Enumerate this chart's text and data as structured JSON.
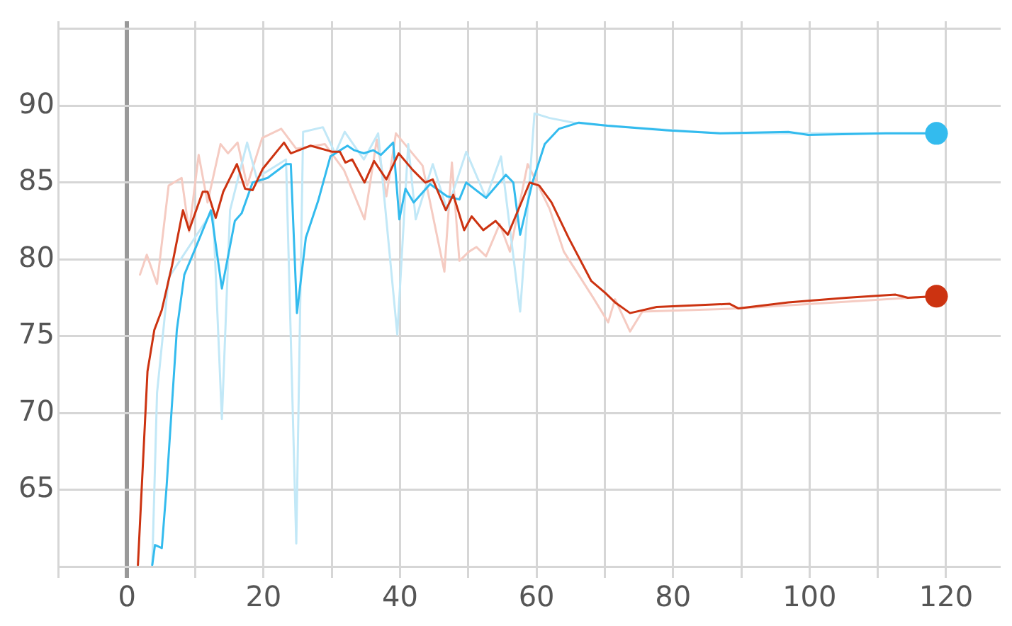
{
  "chart_data": {
    "type": "line",
    "xlim": [
      -10,
      128
    ],
    "ylim": [
      60,
      95.5
    ],
    "xticks": [
      {
        "value": -10,
        "label": null
      },
      0,
      {
        "value": 10,
        "label": null
      },
      20,
      {
        "value": 30,
        "label": null
      },
      40,
      {
        "value": 50,
        "label": null
      },
      60,
      {
        "value": 70,
        "label": null
      },
      80,
      {
        "value": 90,
        "label": null
      },
      100,
      {
        "value": 110,
        "label": null
      },
      120
    ],
    "yticks": [
      {
        "value": 60,
        "label": null
      },
      65,
      70,
      75,
      80,
      85,
      90,
      {
        "value": 95,
        "label": null
      }
    ],
    "grid": true,
    "line_style": "solid",
    "series": [
      {
        "color": "#f5cbc2",
        "x": [
          1.9,
          2.9,
          4.4,
          6.1,
          8,
          9.1,
          10.5,
          11.8,
          13.7,
          14.8,
          16.2,
          17.6,
          19.8,
          22.6,
          24.8,
          29,
          31.8,
          34.8,
          36.6,
          38,
          39.4,
          43.3,
          46.5,
          47.6,
          48.7,
          50.1,
          51.2,
          52.6,
          54.6,
          56.1,
          58.7,
          61.9,
          64,
          68.3,
          70.5,
          71.5,
          73.7,
          75.5,
          89.6,
          118.6
        ],
        "values": [
          79,
          80.3,
          78.4,
          84.8,
          85.3,
          81.8,
          86.8,
          83.7,
          87.5,
          86.9,
          87.6,
          84.8,
          87.9,
          88.5,
          87.2,
          87.5,
          85.8,
          82.6,
          87.8,
          84.1,
          88.2,
          86.1,
          79.2,
          86.3,
          79.9,
          80.5,
          80.8,
          80.2,
          82.3,
          80.5,
          86.2,
          83.3,
          80.5,
          77.5,
          75.9,
          77.4,
          75.3,
          76.6,
          76.8,
          77.6
        ]
      },
      {
        "color": "#c2e8f7",
        "x": [
          3.7,
          4.4,
          6.1,
          12.6,
          13.9,
          15.1,
          17.6,
          19,
          23.3,
          24.8,
          25.8,
          28.7,
          30.5,
          31.9,
          34.7,
          36.8,
          39.6,
          41.2,
          42.3,
          44.8,
          46.9,
          49.7,
          52.6,
          54.8,
          57.6,
          59.7,
          61.9,
          65.4,
          70.4,
          86.9,
          118.6
        ],
        "values": [
          60.1,
          71.3,
          78.8,
          83.2,
          69.6,
          83.2,
          87.6,
          85.3,
          86.5,
          61.5,
          88.3,
          88.6,
          86.9,
          88.3,
          86.5,
          88.2,
          75.1,
          87.5,
          82.6,
          86.2,
          83.2,
          87,
          84,
          86.7,
          76.6,
          89.5,
          89.2,
          88.9,
          88.7,
          88.2,
          88.2
        ]
      },
      {
        "color": "#33bbee",
        "x": [
          3.7,
          4.1,
          5.1,
          5.8,
          7.3,
          8.4,
          10.1,
          12.3,
          13.9,
          15.8,
          16.8,
          18.4,
          20.6,
          23.3,
          24,
          24.9,
          26.2,
          28,
          29.8,
          32.3,
          33.3,
          34.7,
          36.1,
          37.2,
          39,
          39.9,
          40.8,
          42,
          44.4,
          46.9,
          48.7,
          49.7,
          52.6,
          55.5,
          56.6,
          57.6,
          59.4,
          61.2,
          63.3,
          66.2,
          70.4,
          79,
          86.9,
          96.9,
          99.8,
          111.2,
          118.6
        ],
        "values": [
          60.1,
          61.4,
          61.2,
          65.2,
          75.4,
          79,
          80.8,
          83.2,
          78.1,
          82.5,
          83,
          85,
          85.3,
          86.2,
          86.2,
          76.5,
          81.4,
          83.8,
          86.7,
          87.4,
          87.1,
          86.9,
          87.1,
          86.8,
          87.6,
          82.6,
          84.6,
          83.7,
          84.9,
          84.1,
          83.9,
          85,
          84,
          85.5,
          85,
          81.6,
          85,
          87.5,
          88.5,
          88.9,
          88.7,
          88.4,
          88.2,
          88.3,
          88.1,
          88.2,
          88.2
        ]
      },
      {
        "color": "#cc3311",
        "x": [
          1.6,
          3,
          4,
          5.1,
          6.6,
          8.2,
          9.1,
          11.1,
          11.8,
          13,
          14.1,
          16.1,
          17.3,
          18.4,
          19.9,
          23,
          24,
          26.9,
          30.1,
          31.2,
          32,
          33,
          34.8,
          36.2,
          38,
          39.8,
          41.9,
          43.7,
          44.8,
          46.7,
          47.8,
          49.4,
          50.5,
          52.2,
          54,
          55.8,
          59,
          60.4,
          62.2,
          64.7,
          68,
          70.1,
          71.5,
          73.7,
          77.6,
          88.3,
          89.6,
          96.9,
          105.4,
          112.6,
          114.4,
          118.6
        ],
        "values": [
          60.1,
          72.7,
          75.4,
          76.7,
          79.6,
          83.2,
          81.9,
          84.4,
          84.4,
          82.7,
          84.4,
          86.2,
          84.6,
          84.5,
          85.9,
          87.6,
          86.9,
          87.4,
          87,
          87,
          86.3,
          86.5,
          85,
          86.4,
          85.2,
          86.9,
          85.8,
          85,
          85.2,
          83.2,
          84.2,
          81.9,
          82.8,
          81.9,
          82.5,
          81.6,
          85,
          84.8,
          83.7,
          81.4,
          78.6,
          77.8,
          77.2,
          76.5,
          76.9,
          77.1,
          76.8,
          77.2,
          77.5,
          77.7,
          77.5,
          77.6
        ]
      }
    ]
  }
}
